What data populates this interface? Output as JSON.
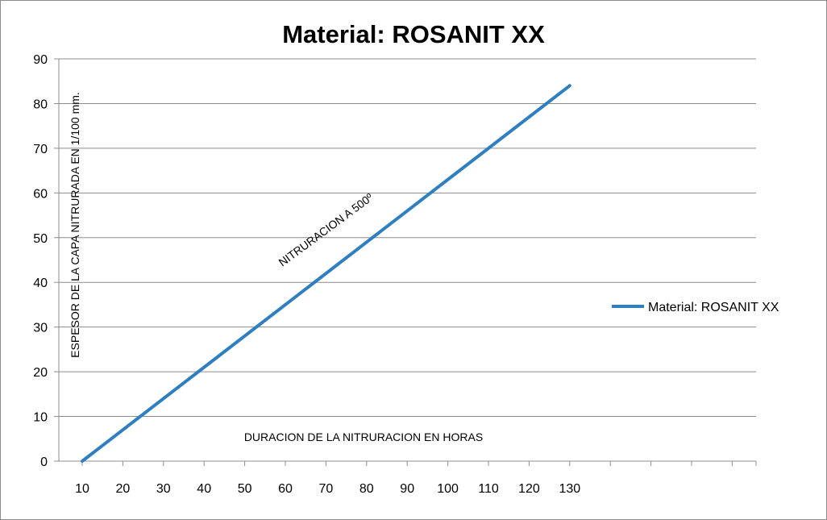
{
  "chart_data": {
    "type": "line",
    "title": "Material: ROSANIT XX",
    "xlabel": "DURACION DE LA NITRURACION EN HORAS",
    "ylabel": "ESPESOR DE LA CAPA NITRURADA EN 1/100 mm.",
    "annotation": "NITRURACION A 500º",
    "x_tick_labels": [
      "10",
      "20",
      "30",
      "40",
      "50",
      "60",
      "70",
      "80",
      "90",
      "100",
      "110",
      "120",
      "130"
    ],
    "y_tick_labels": [
      "0",
      "10",
      "20",
      "30",
      "40",
      "50",
      "60",
      "70",
      "80",
      "90"
    ],
    "ylim": [
      0,
      90
    ],
    "grid": true,
    "legend_position": "right",
    "series": [
      {
        "name": "Material: ROSANIT XX",
        "color": "#2e7fc1",
        "x": [
          10,
          130
        ],
        "y": [
          0,
          84
        ]
      }
    ]
  }
}
